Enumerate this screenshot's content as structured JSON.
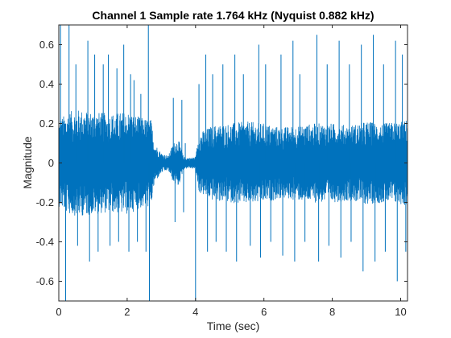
{
  "chart_data": {
    "type": "line",
    "title": "Channel 1 Sample rate 1.764 kHz (Nyquist 0.882 kHz)",
    "xlabel": "Time (sec)",
    "ylabel": "Magnitude",
    "xlim": [
      0,
      10.2
    ],
    "ylim": [
      -0.7,
      0.7
    ],
    "xticks": [
      0,
      2,
      4,
      6,
      8,
      10
    ],
    "xtick_labels": [
      "0",
      "2",
      "4",
      "6",
      "8",
      "10"
    ],
    "yticks": [
      -0.6,
      -0.4,
      -0.2,
      0,
      0.2,
      0.4,
      0.6
    ],
    "ytick_labels": [
      "-0.6",
      "-0.4",
      "-0.2",
      "0",
      "0.2",
      "0.4",
      "0.6"
    ],
    "series": [
      {
        "name": "Channel 1",
        "color": "#0072bd",
        "envelope": {
          "t": [
            0,
            0.3,
            0.6,
            1.0,
            1.5,
            2.0,
            2.4,
            2.7,
            2.8,
            3.0,
            3.2,
            3.35,
            3.5,
            3.65,
            3.8,
            4.0,
            4.1,
            4.5,
            5.0,
            5.5,
            6.0,
            6.5,
            7.0,
            7.5,
            8.0,
            8.5,
            9.0,
            9.5,
            10.0,
            10.2
          ],
          "max": [
            0.22,
            0.26,
            0.27,
            0.26,
            0.25,
            0.26,
            0.23,
            0.22,
            0.1,
            0.05,
            0.035,
            0.1,
            0.12,
            0.03,
            0.025,
            0.03,
            0.15,
            0.19,
            0.2,
            0.21,
            0.2,
            0.18,
            0.19,
            0.2,
            0.2,
            0.19,
            0.21,
            0.2,
            0.21,
            0.22
          ],
          "min": [
            -0.22,
            -0.26,
            -0.27,
            -0.26,
            -0.25,
            -0.26,
            -0.23,
            -0.22,
            -0.1,
            -0.05,
            -0.035,
            -0.1,
            -0.12,
            -0.03,
            -0.025,
            -0.03,
            -0.15,
            -0.19,
            -0.2,
            -0.21,
            -0.2,
            -0.18,
            -0.19,
            -0.2,
            -0.2,
            -0.19,
            -0.21,
            -0.2,
            -0.21,
            -0.22
          ]
        },
        "spikes": [
          {
            "t": 0.05,
            "v": 0.7
          },
          {
            "t": 0.2,
            "v": -0.7
          },
          {
            "t": 0.3,
            "v": 0.7
          },
          {
            "t": 0.5,
            "v": 0.5
          },
          {
            "t": 0.55,
            "v": -0.42
          },
          {
            "t": 0.85,
            "v": 0.62
          },
          {
            "t": 0.9,
            "v": -0.5
          },
          {
            "t": 1.05,
            "v": 0.55
          },
          {
            "t": 1.15,
            "v": -0.45
          },
          {
            "t": 1.3,
            "v": 0.5
          },
          {
            "t": 1.45,
            "v": 0.55
          },
          {
            "t": 1.5,
            "v": -0.42
          },
          {
            "t": 1.7,
            "v": 0.48
          },
          {
            "t": 1.75,
            "v": -0.4
          },
          {
            "t": 1.9,
            "v": 0.6
          },
          {
            "t": 2.05,
            "v": -0.45
          },
          {
            "t": 2.1,
            "v": 0.45
          },
          {
            "t": 2.2,
            "v": 0.42
          },
          {
            "t": 2.3,
            "v": -0.4
          },
          {
            "t": 2.4,
            "v": 0.35
          },
          {
            "t": 2.55,
            "v": -0.45
          },
          {
            "t": 2.62,
            "v": 0.7
          },
          {
            "t": 2.65,
            "v": -0.7
          },
          {
            "t": 3.35,
            "v": 0.33
          },
          {
            "t": 3.4,
            "v": -0.3
          },
          {
            "t": 3.6,
            "v": 0.32
          },
          {
            "t": 3.65,
            "v": -0.25
          },
          {
            "t": 3.7,
            "v": 0.1
          },
          {
            "t": 4.0,
            "v": -0.7
          },
          {
            "t": 4.1,
            "v": 0.4
          },
          {
            "t": 4.3,
            "v": 0.55
          },
          {
            "t": 4.35,
            "v": -0.45
          },
          {
            "t": 4.5,
            "v": 0.45
          },
          {
            "t": 4.6,
            "v": -0.4
          },
          {
            "t": 4.8,
            "v": 0.5
          },
          {
            "t": 4.9,
            "v": -0.45
          },
          {
            "t": 5.15,
            "v": 0.55
          },
          {
            "t": 5.2,
            "v": -0.5
          },
          {
            "t": 5.4,
            "v": 0.45
          },
          {
            "t": 5.6,
            "v": -0.42
          },
          {
            "t": 5.85,
            "v": 0.6
          },
          {
            "t": 5.9,
            "v": -0.48
          },
          {
            "t": 6.05,
            "v": 0.5
          },
          {
            "t": 6.2,
            "v": -0.4
          },
          {
            "t": 6.5,
            "v": 0.55
          },
          {
            "t": 6.55,
            "v": -0.47
          },
          {
            "t": 6.85,
            "v": 0.62
          },
          {
            "t": 6.9,
            "v": -0.5
          },
          {
            "t": 7.05,
            "v": 0.45
          },
          {
            "t": 7.2,
            "v": -0.4
          },
          {
            "t": 7.55,
            "v": 0.65
          },
          {
            "t": 7.6,
            "v": -0.5
          },
          {
            "t": 7.85,
            "v": 0.5
          },
          {
            "t": 7.9,
            "v": -0.42
          },
          {
            "t": 8.2,
            "v": 0.62
          },
          {
            "t": 8.25,
            "v": -0.48
          },
          {
            "t": 8.5,
            "v": 0.5
          },
          {
            "t": 8.55,
            "v": -0.4
          },
          {
            "t": 8.85,
            "v": 0.6
          },
          {
            "t": 8.9,
            "v": -0.55
          },
          {
            "t": 9.2,
            "v": 0.65
          },
          {
            "t": 9.25,
            "v": -0.5
          },
          {
            "t": 9.5,
            "v": 0.5
          },
          {
            "t": 9.55,
            "v": -0.45
          },
          {
            "t": 9.85,
            "v": 0.62
          },
          {
            "t": 9.9,
            "v": -0.6
          },
          {
            "t": 10.05,
            "v": 0.55
          },
          {
            "t": 10.15,
            "v": -0.45
          }
        ]
      }
    ]
  }
}
